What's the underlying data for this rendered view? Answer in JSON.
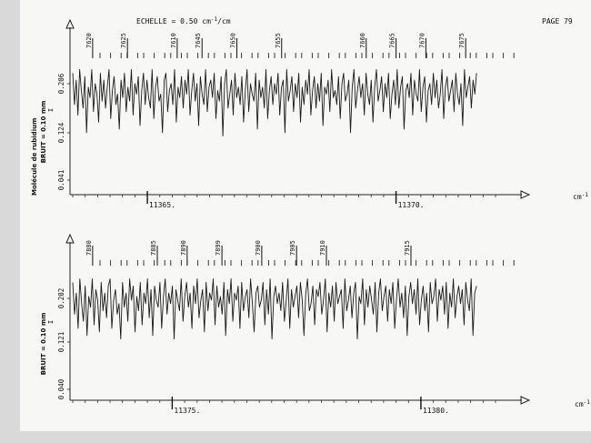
{
  "page": {
    "header_scale_prefix": "ECHELLE = 0.50 cm",
    "header_scale_sup": "-1",
    "header_scale_suffix": "/cm",
    "page_label": "PAGE 79",
    "side_title": "Molécule de rubidium"
  },
  "chart_data": [
    {
      "type": "line",
      "description_free": true,
      "xunit": "cm",
      "xunit_sup": "-1",
      "xlim": [
        11363.5,
        11372.0
      ],
      "ytick_labels": [
        "0.206",
        "0.124",
        "0.041"
      ],
      "noise_label": "BRUIT = 0.10 mm",
      "axis_mark": "I",
      "x_major_ticks": [
        {
          "label": "11365.",
          "x": 11365.0
        },
        {
          "label": "11370.",
          "x": 11370.0
        }
      ],
      "line_ids": [
        {
          "label": "7620",
          "x": 11363.9
        },
        {
          "label": "7625",
          "x": 11364.6
        },
        {
          "label": "7610",
          "x": 11365.6
        },
        {
          "label": "7645",
          "x": 11366.1
        },
        {
          "label": "7650",
          "x": 11366.8
        },
        {
          "label": "7655",
          "x": 11367.7
        },
        {
          "label": "7660",
          "x": 11369.4
        },
        {
          "label": "7665",
          "x": 11370.0
        },
        {
          "label": "7670",
          "x": 11370.6
        },
        {
          "label": "7675",
          "x": 11371.4
        }
      ],
      "series": [
        {
          "values": [
            0.26,
            0.17,
            0.24,
            0.14,
            0.27,
            0.21,
            0.16,
            0.25,
            0.09,
            0.22,
            0.19,
            0.27,
            0.15,
            0.23,
            0.2,
            0.12,
            0.26,
            0.18,
            0.24,
            0.16,
            0.22,
            0.27,
            0.13,
            0.21,
            0.25,
            0.17,
            0.2,
            0.1,
            0.24,
            0.19,
            0.26,
            0.15,
            0.22,
            0.18,
            0.27,
            0.14,
            0.23,
            0.2,
            0.25,
            0.11,
            0.21,
            0.26,
            0.17,
            0.24,
            0.19,
            0.16,
            0.27,
            0.13,
            0.22,
            0.25,
            0.18,
            0.2,
            0.09,
            0.24,
            0.26,
            0.15,
            0.21,
            0.23,
            0.17,
            0.27,
            0.12,
            0.22,
            0.19,
            0.25,
            0.16,
            0.24,
            0.2,
            0.27,
            0.14,
            0.21,
            0.26,
            0.18,
            0.23,
            0.11,
            0.25,
            0.2,
            0.17,
            0.27,
            0.15,
            0.22,
            0.24,
            0.19,
            0.26,
            0.13,
            0.21,
            0.18,
            0.25,
            0.08,
            0.23,
            0.27,
            0.16,
            0.2,
            0.24,
            0.14,
            0.26,
            0.19,
            0.22,
            0.17,
            0.25,
            0.12,
            0.21,
            0.27,
            0.15,
            0.23,
            0.2,
            0.18,
            0.26,
            0.1,
            0.24,
            0.19,
            0.22,
            0.16,
            0.27,
            0.13,
            0.21,
            0.25,
            0.17,
            0.23,
            0.2,
            0.26,
            0.14,
            0.22,
            0.24,
            0.09,
            0.27,
            0.18,
            0.21,
            0.25,
            0.15,
            0.23,
            0.19,
            0.26,
            0.12,
            0.22,
            0.17,
            0.24,
            0.2,
            0.27,
            0.14,
            0.21,
            0.25,
            0.16,
            0.23,
            0.18,
            0.26,
            0.11,
            0.22,
            0.2,
            0.24,
            0.15,
            0.27,
            0.19,
            0.21,
            0.17,
            0.25,
            0.13,
            0.23,
            0.26,
            0.18,
            0.2,
            0.24,
            0.09,
            0.22,
            0.27,
            0.16,
            0.21,
            0.25,
            0.19,
            0.23,
            0.14,
            0.26,
            0.2,
            0.17,
            0.24,
            0.12,
            0.22,
            0.27,
            0.18,
            0.21,
            0.25,
            0.15,
            0.23,
            0.19,
            0.26,
            0.13,
            0.2,
            0.24,
            0.17,
            0.27,
            0.16,
            0.22,
            0.25,
            0.1,
            0.21,
            0.23,
            0.19,
            0.26,
            0.14,
            0.24,
            0.2,
            0.18,
            0.27,
            0.15,
            0.22,
            0.25,
            0.12,
            0.21,
            0.23,
            0.17,
            0.26,
            0.19,
            0.24,
            0.16,
            0.2,
            0.27,
            0.13,
            0.22,
            0.25,
            0.18,
            0.21,
            0.24,
            0.15,
            0.26,
            0.2,
            0.17,
            0.23,
            0.11,
            0.27,
            0.19,
            0.22,
            0.25,
            0.16,
            0.24,
            0.2,
            0.26
          ]
        }
      ]
    },
    {
      "type": "line",
      "xunit": "cm",
      "xunit_sup": "-1",
      "xlim": [
        11373.0,
        11381.5
      ],
      "ytick_labels": [
        "0.202",
        "0.121",
        "0.040"
      ],
      "noise_label": "BRUIT = 0.10 mm",
      "axis_mark": "I",
      "x_major_ticks": [
        {
          "label": "11375.",
          "x": 11375.0
        },
        {
          "label": "11380.",
          "x": 11380.0
        }
      ],
      "line_ids": [
        {
          "label": "7880",
          "x": 11373.4
        },
        {
          "label": "7885",
          "x": 11374.7
        },
        {
          "label": "7890",
          "x": 11375.3
        },
        {
          "label": "7899",
          "x": 11376.0
        },
        {
          "label": "7900",
          "x": 11376.8
        },
        {
          "label": "7905",
          "x": 11377.5
        },
        {
          "label": "7910",
          "x": 11378.1
        },
        {
          "label": "7915",
          "x": 11379.8
        }
      ],
      "series": [
        {
          "values": [
            0.25,
            0.16,
            0.22,
            0.12,
            0.26,
            0.19,
            0.14,
            0.24,
            0.1,
            0.21,
            0.18,
            0.26,
            0.13,
            0.23,
            0.2,
            0.11,
            0.25,
            0.17,
            0.22,
            0.15,
            0.24,
            0.26,
            0.12,
            0.2,
            0.23,
            0.16,
            0.19,
            0.09,
            0.25,
            0.18,
            0.22,
            0.14,
            0.26,
            0.2,
            0.24,
            0.11,
            0.21,
            0.17,
            0.25,
            0.13,
            0.22,
            0.19,
            0.26,
            0.15,
            0.23,
            0.1,
            0.24,
            0.2,
            0.18,
            0.25,
            0.12,
            0.21,
            0.26,
            0.16,
            0.22,
            0.19,
            0.24,
            0.09,
            0.23,
            0.2,
            0.17,
            0.26,
            0.14,
            0.21,
            0.25,
            0.18,
            0.22,
            0.12,
            0.24,
            0.19,
            0.26,
            0.15,
            0.2,
            0.23,
            0.11,
            0.25,
            0.17,
            0.22,
            0.2,
            0.26,
            0.13,
            0.24,
            0.18,
            0.21,
            0.16,
            0.25,
            0.1,
            0.23,
            0.19,
            0.26,
            0.14,
            0.22,
            0.2,
            0.24,
            0.12,
            0.25,
            0.17,
            0.21,
            0.23,
            0.15,
            0.26,
            0.19,
            0.11,
            0.22,
            0.24,
            0.18,
            0.2,
            0.25,
            0.13,
            0.23,
            0.16,
            0.26,
            0.09,
            0.21,
            0.24,
            0.19,
            0.22,
            0.17,
            0.25,
            0.14,
            0.2,
            0.26,
            0.12,
            0.23,
            0.18,
            0.21,
            0.24,
            0.15,
            0.25,
            0.2,
            0.1,
            0.22,
            0.26,
            0.17,
            0.19,
            0.24,
            0.13,
            0.23,
            0.21,
            0.25,
            0.16,
            0.2,
            0.26,
            0.11,
            0.22,
            0.18,
            0.24,
            0.14,
            0.25,
            0.19,
            0.21,
            0.23,
            0.12,
            0.26,
            0.17,
            0.2,
            0.24,
            0.15,
            0.22,
            0.25,
            0.09,
            0.21,
            0.19,
            0.26,
            0.13,
            0.23,
            0.18,
            0.24,
            0.2,
            0.16,
            0.25,
            0.11,
            0.22,
            0.26,
            0.17,
            0.21,
            0.24,
            0.14,
            0.23,
            0.19,
            0.25,
            0.12,
            0.2,
            0.26,
            0.18,
            0.22,
            0.15,
            0.24,
            0.1,
            0.21,
            0.25,
            0.19,
            0.23,
            0.16,
            0.26,
            0.13,
            0.2,
            0.24,
            0.17,
            0.22,
            0.11,
            0.25,
            0.19,
            0.21,
            0.26,
            0.14,
            0.23,
            0.2,
            0.24,
            0.16,
            0.25,
            0.12,
            0.22,
            0.18,
            0.26,
            0.15,
            0.21,
            0.24,
            0.19,
            0.23,
            0.13,
            0.25,
            0.2,
            0.17,
            0.26,
            0.1,
            0.22,
            0.24
          ]
        }
      ]
    }
  ]
}
